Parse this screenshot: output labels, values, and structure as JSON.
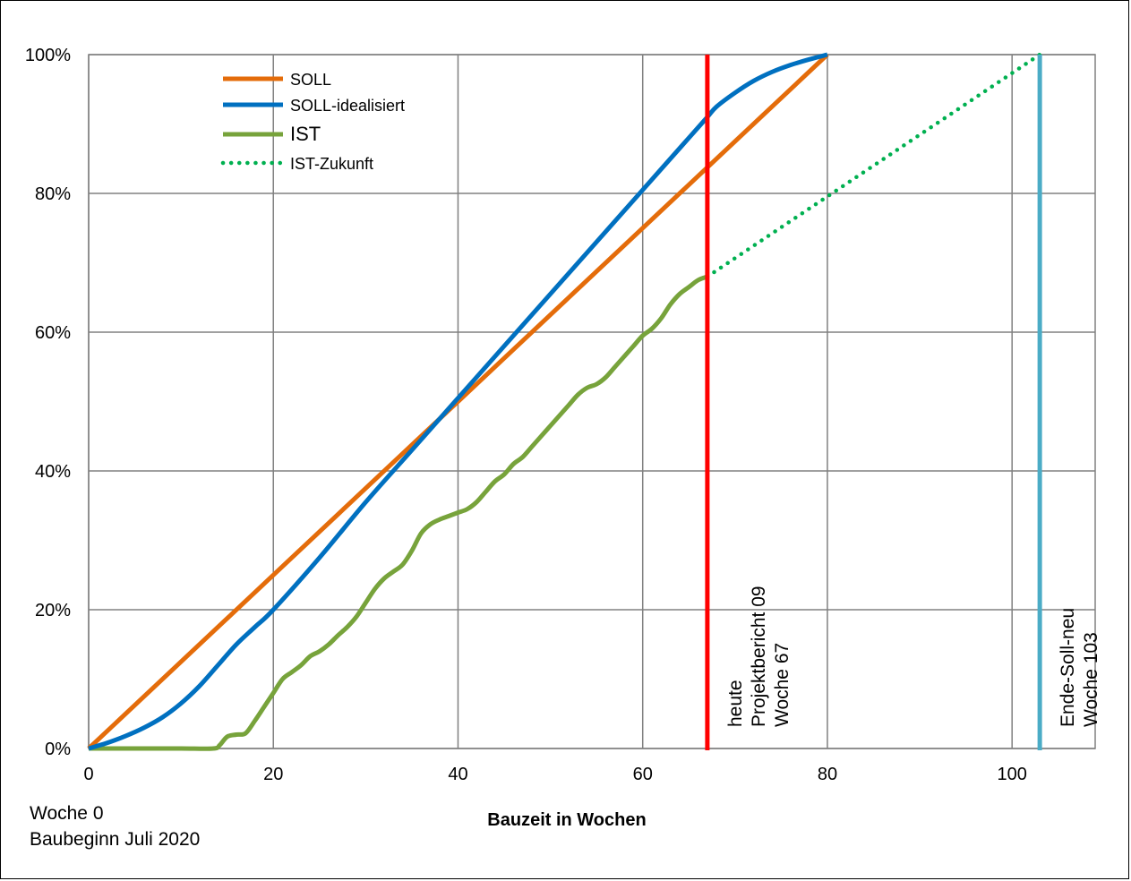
{
  "chart_data": {
    "type": "line",
    "xlabel": "Bauzeit in Wochen",
    "ylabel": "",
    "xlim": [
      0,
      109
    ],
    "ylim": [
      0,
      100
    ],
    "x_ticks": [
      0,
      20,
      40,
      60,
      80,
      100
    ],
    "y_ticks": [
      0,
      20,
      40,
      60,
      80,
      100
    ],
    "x_tick_labels": [
      "0",
      "20",
      "40",
      "60",
      "80",
      "100"
    ],
    "y_tick_labels": [
      "0%",
      "20%",
      "40%",
      "60%",
      "80%",
      "100%"
    ],
    "grid": true,
    "legend_position": "top-left",
    "series": [
      {
        "name": "SOLL",
        "color": "#E46C0A",
        "style": "solid",
        "x": [
          0,
          80
        ],
        "y": [
          0,
          100
        ]
      },
      {
        "name": "SOLL-idealisiert",
        "color": "#0070C0",
        "style": "solid",
        "x": [
          0,
          2,
          4,
          6,
          8,
          10,
          12,
          14,
          16,
          18,
          20,
          25,
          30,
          35,
          40,
          45,
          50,
          55,
          60,
          65,
          67,
          68,
          70,
          72,
          74,
          76,
          78,
          80
        ],
        "y": [
          0,
          0.8,
          1.8,
          3,
          4.5,
          6.5,
          9,
          12,
          15,
          17.5,
          20,
          27.5,
          35.5,
          43,
          50.5,
          58,
          65.5,
          73,
          80.5,
          88,
          91,
          92.5,
          94.5,
          96.2,
          97.5,
          98.5,
          99.3,
          100
        ]
      },
      {
        "name": "IST",
        "color": "#77A33B",
        "style": "solid",
        "x": [
          0,
          5,
          10,
          13.5,
          14.2,
          15,
          16,
          17,
          18,
          19,
          20,
          21,
          22,
          23,
          24,
          25,
          26,
          27,
          28,
          29,
          30,
          31,
          32,
          33,
          34,
          35,
          36,
          37,
          38,
          39,
          40,
          41,
          42,
          43,
          44,
          45,
          46,
          47,
          48,
          49,
          50,
          51,
          52,
          53,
          54,
          55,
          56,
          57,
          58,
          59,
          60,
          61,
          62,
          63,
          64,
          65,
          66,
          67
        ],
        "y": [
          0,
          0,
          0,
          0,
          0.5,
          1.7,
          2,
          2.2,
          4,
          6,
          8,
          10,
          11,
          12,
          13.3,
          14,
          15,
          16.3,
          17.5,
          19,
          21,
          23,
          24.5,
          25.5,
          26.5,
          28.5,
          31,
          32.3,
          33,
          33.5,
          34,
          34.5,
          35.5,
          37,
          38.5,
          39.5,
          41,
          42,
          43.5,
          45,
          46.5,
          48,
          49.5,
          51,
          52,
          52.5,
          53.5,
          55,
          56.5,
          58,
          59.5,
          60.5,
          62,
          64,
          65.5,
          66.5,
          67.5,
          68
        ]
      },
      {
        "name": "IST-Zukunft",
        "color": "#00B050",
        "style": "dotted",
        "x": [
          67,
          103
        ],
        "y": [
          68,
          100
        ]
      }
    ],
    "markers": [
      {
        "x": 67,
        "color": "#FF0000",
        "lines": [
          "heute",
          "Projektbericht 09",
          "Woche 67"
        ]
      },
      {
        "x": 103,
        "color": "#4BACC6",
        "lines": [
          "Ende-Soll-neu",
          "Woche 103"
        ]
      }
    ]
  },
  "notes": {
    "line1": "Woche 0",
    "line2": "Baubeginn Juli 2020"
  }
}
